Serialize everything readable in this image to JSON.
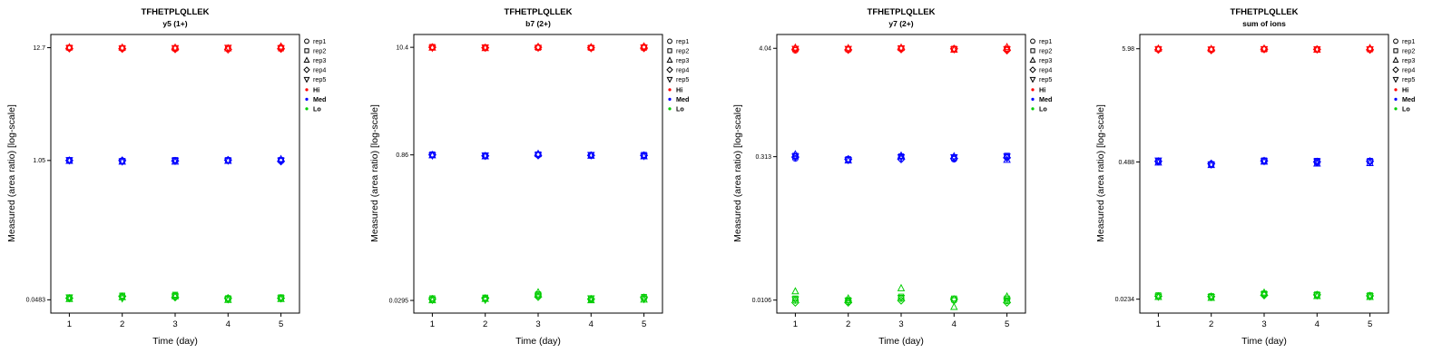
{
  "legend": {
    "reps": [
      "rep1",
      "rep2",
      "rep3",
      "rep4",
      "rep5"
    ],
    "groups": [
      {
        "name": "Hi",
        "color": "#FF0000"
      },
      {
        "name": "Med",
        "color": "#0000FF"
      },
      {
        "name": "Lo",
        "color": "#00CC00"
      }
    ]
  },
  "chart_data": [
    {
      "type": "scatter",
      "title": "TFHETPLQLLEK",
      "subtitle": "y5 (1+)",
      "xlabel": "Time (day)",
      "ylabel": "Measured (area ratio) [log-scale]",
      "x": [
        1,
        2,
        3,
        4,
        5
      ],
      "ylim": [
        0.036,
        17
      ],
      "yticks": [
        12.7,
        1.05,
        0.0483
      ],
      "ytick_labels": [
        "12.7",
        "1.05",
        "0.0483"
      ],
      "series": [
        {
          "name": "Hi",
          "color": "#FF0000",
          "values_by_day": [
            [
              12.6,
              12.7,
              12.8,
              12.5,
              12.6
            ],
            [
              12.5,
              12.6,
              12.7,
              12.4,
              12.5
            ],
            [
              12.6,
              12.5,
              12.7,
              12.3,
              12.6
            ],
            [
              12.4,
              12.6,
              12.5,
              12.2,
              12.7
            ],
            [
              12.8,
              12.5,
              13.0,
              12.4,
              12.6
            ]
          ]
        },
        {
          "name": "Med",
          "color": "#0000FF",
          "values_by_day": [
            [
              1.05,
              1.06,
              1.04,
              1.05,
              1.06
            ],
            [
              1.03,
              1.04,
              1.02,
              1.05,
              1.03
            ],
            [
              1.05,
              1.06,
              1.02,
              1.04,
              1.05
            ],
            [
              1.05,
              1.06,
              1.04,
              1.06,
              1.05
            ],
            [
              1.04,
              1.06,
              1.08,
              1.03,
              1.05
            ]
          ]
        },
        {
          "name": "Lo",
          "color": "#00CC00",
          "values_by_day": [
            [
              0.05,
              0.051,
              0.049,
              0.05,
              0.051
            ],
            [
              0.052,
              0.053,
              0.051,
              0.052,
              0.05
            ],
            [
              0.053,
              0.054,
              0.052,
              0.051,
              0.052
            ],
            [
              0.049,
              0.05,
              0.048,
              0.05,
              0.049
            ],
            [
              0.05,
              0.051,
              0.049,
              0.05,
              0.05
            ]
          ]
        }
      ]
    },
    {
      "type": "scatter",
      "title": "TFHETPLQLLEK",
      "subtitle": "b7 (2+)",
      "xlabel": "Time (day)",
      "ylabel": "Measured (area ratio) [log-scale]",
      "x": [
        1,
        2,
        3,
        4,
        5
      ],
      "ylim": [
        0.022,
        14
      ],
      "yticks": [
        10.4,
        0.86,
        0.0295
      ],
      "ytick_labels": [
        "10.4",
        "0.86",
        "0.0295"
      ],
      "series": [
        {
          "name": "Hi",
          "color": "#FF0000",
          "values_by_day": [
            [
              10.4,
              10.5,
              10.3,
              10.4,
              10.3
            ],
            [
              10.3,
              10.4,
              10.2,
              10.3,
              10.4
            ],
            [
              10.4,
              10.3,
              10.5,
              10.4,
              10.3
            ],
            [
              10.2,
              10.3,
              10.4,
              10.3,
              10.2
            ],
            [
              10.5,
              10.3,
              10.6,
              10.2,
              10.4
            ]
          ]
        },
        {
          "name": "Med",
          "color": "#0000FF",
          "values_by_day": [
            [
              0.86,
              0.87,
              0.85,
              0.86,
              0.85
            ],
            [
              0.84,
              0.85,
              0.83,
              0.84,
              0.85
            ],
            [
              0.86,
              0.87,
              0.88,
              0.85,
              0.86
            ],
            [
              0.85,
              0.86,
              0.84,
              0.85,
              0.86
            ],
            [
              0.84,
              0.86,
              0.83,
              0.85,
              0.84
            ]
          ]
        },
        {
          "name": "Lo",
          "color": "#00CC00",
          "values_by_day": [
            [
              0.03,
              0.031,
              0.0295,
              0.0305,
              0.03
            ],
            [
              0.031,
              0.0315,
              0.0305,
              0.031,
              0.03
            ],
            [
              0.033,
              0.034,
              0.0355,
              0.032,
              0.033
            ],
            [
              0.03,
              0.031,
              0.0295,
              0.0305,
              0.031
            ],
            [
              0.031,
              0.032,
              0.03,
              0.0315,
              0.0305
            ]
          ]
        }
      ]
    },
    {
      "type": "scatter",
      "title": "TFHETPLQLLEK",
      "subtitle": "y7 (2+)",
      "xlabel": "Time (day)",
      "ylabel": "Measured (area ratio) [log-scale]",
      "x": [
        1,
        2,
        3,
        4,
        5
      ],
      "ylim": [
        0.0078,
        5.6
      ],
      "yticks": [
        4.04,
        0.313,
        0.0106
      ],
      "ytick_labels": [
        "4.04",
        "0.313",
        "0.0106"
      ],
      "series": [
        {
          "name": "Hi",
          "color": "#FF0000",
          "values_by_day": [
            [
              3.85,
              4.0,
              4.1,
              3.95,
              4.0
            ],
            [
              3.9,
              3.95,
              4.05,
              3.9,
              4.0
            ],
            [
              4.0,
              4.05,
              4.1,
              3.95,
              4.05
            ],
            [
              3.95,
              4.0,
              3.9,
              4.0,
              3.95
            ],
            [
              3.9,
              4.0,
              4.15,
              3.85,
              3.95
            ]
          ]
        },
        {
          "name": "Med",
          "color": "#0000FF",
          "values_by_day": [
            [
              0.3,
              0.32,
              0.33,
              0.31,
              0.315
            ],
            [
              0.29,
              0.295,
              0.285,
              0.295,
              0.29
            ],
            [
              0.3,
              0.315,
              0.32,
              0.295,
              0.31
            ],
            [
              0.295,
              0.305,
              0.315,
              0.3,
              0.31
            ],
            [
              0.31,
              0.32,
              0.29,
              0.305,
              0.315
            ]
          ]
        },
        {
          "name": "Lo",
          "color": "#00CC00",
          "values_by_day": [
            [
              0.0105,
              0.011,
              0.013,
              0.01,
              0.0108
            ],
            [
              0.0102,
              0.0106,
              0.011,
              0.01,
              0.0104
            ],
            [
              0.011,
              0.0115,
              0.014,
              0.0105,
              0.0112
            ],
            [
              0.0105,
              0.011,
              0.009,
              0.0108,
              0.0106
            ],
            [
              0.0104,
              0.011,
              0.0115,
              0.01,
              0.0106
            ]
          ]
        }
      ]
    },
    {
      "type": "scatter",
      "title": "TFHETPLQLLEK",
      "subtitle": "sum of ions",
      "xlabel": "Time (day)",
      "ylabel": "Measured (area ratio) [log-scale]",
      "x": [
        1,
        2,
        3,
        4,
        5
      ],
      "ylim": [
        0.0172,
        8.2
      ],
      "yticks": [
        5.98,
        0.488,
        0.0234
      ],
      "ytick_labels": [
        "5.98",
        "0.488",
        "0.0234"
      ],
      "series": [
        {
          "name": "Hi",
          "color": "#FF0000",
          "values_by_day": [
            [
              5.9,
              5.95,
              6.0,
              5.85,
              5.92
            ],
            [
              5.85,
              5.9,
              5.95,
              5.8,
              5.88
            ],
            [
              5.95,
              5.9,
              6.0,
              5.92,
              5.95
            ],
            [
              5.88,
              5.92,
              5.85,
              5.9,
              5.92
            ],
            [
              5.95,
              5.9,
              6.05,
              5.85,
              5.92
            ]
          ]
        },
        {
          "name": "Med",
          "color": "#0000FF",
          "values_by_day": [
            [
              0.49,
              0.5,
              0.48,
              0.495,
              0.505
            ],
            [
              0.46,
              0.465,
              0.455,
              0.47,
              0.462
            ],
            [
              0.495,
              0.505,
              0.49,
              0.5,
              0.498
            ],
            [
              0.48,
              0.5,
              0.47,
              0.49,
              0.495
            ],
            [
              0.49,
              0.5,
              0.475,
              0.495,
              0.488
            ]
          ]
        },
        {
          "name": "Lo",
          "color": "#00CC00",
          "values_by_day": [
            [
              0.025,
              0.0255,
              0.0245,
              0.025,
              0.0248
            ],
            [
              0.0245,
              0.025,
              0.024,
              0.0248,
              0.0246
            ],
            [
              0.026,
              0.0265,
              0.027,
              0.0255,
              0.026
            ],
            [
              0.0255,
              0.026,
              0.025,
              0.0258,
              0.0255
            ],
            [
              0.025,
              0.0255,
              0.0245,
              0.0252,
              0.025
            ]
          ]
        }
      ]
    }
  ]
}
